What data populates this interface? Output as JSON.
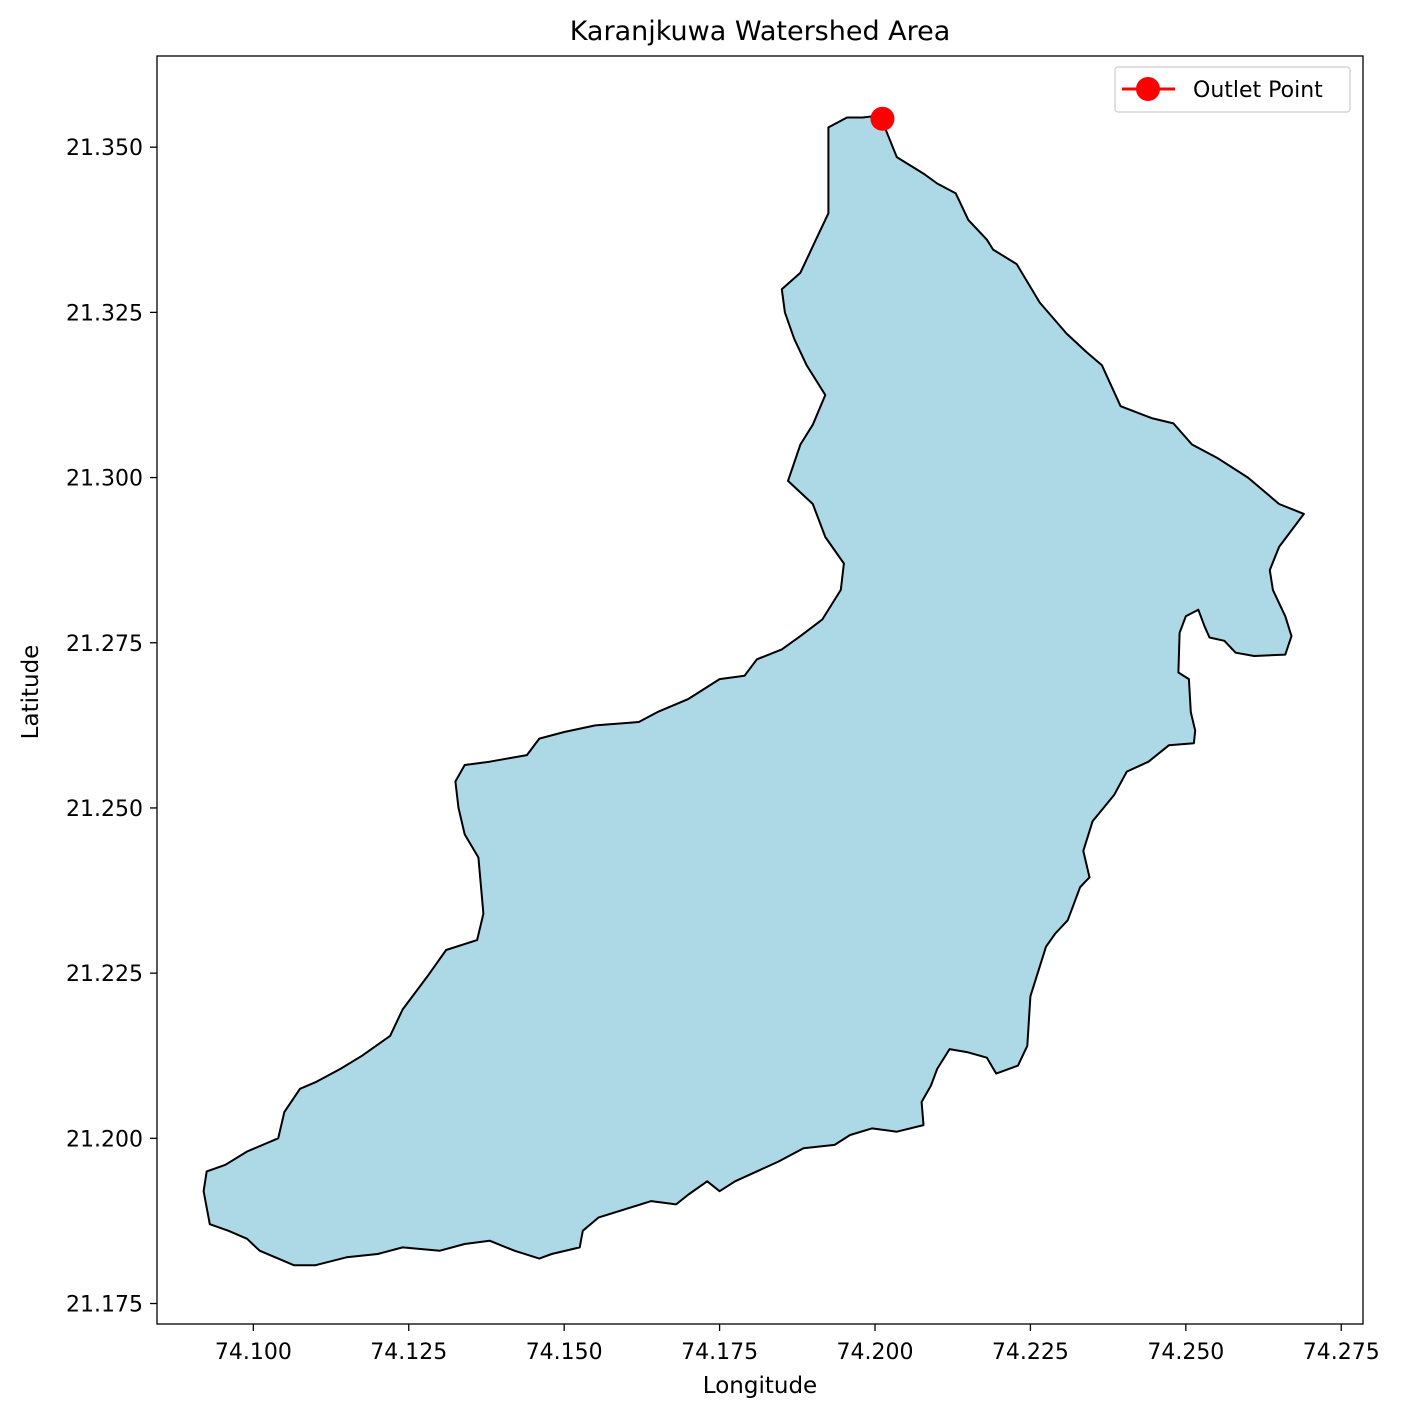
{
  "chart_data": {
    "type": "map",
    "title": "Karanjkuwa Watershed Area",
    "xlabel": "Longitude",
    "ylabel": "Latitude",
    "xlim": [
      74.0845,
      74.2785
    ],
    "ylim": [
      21.1719,
      21.3638
    ],
    "x_ticks": [
      "74.100",
      "74.125",
      "74.150",
      "74.175",
      "74.200",
      "74.225",
      "74.250",
      "74.275"
    ],
    "y_ticks": [
      "21.175",
      "21.200",
      "21.225",
      "21.250",
      "21.275",
      "21.300",
      "21.325",
      "21.350"
    ],
    "outlet_point": {
      "label": "Outlet Point",
      "lon": 74.2012,
      "lat": 21.3543,
      "color": "#ff0000"
    },
    "watershed": {
      "fill": "#add8e6",
      "edge": "#000000",
      "boundary": [
        [
          74.2008,
          21.3548
        ],
        [
          74.2035,
          21.3485
        ],
        [
          74.2078,
          21.346
        ],
        [
          74.21,
          21.3445
        ],
        [
          74.213,
          21.343
        ],
        [
          74.215,
          21.339
        ],
        [
          74.218,
          21.336
        ],
        [
          74.219,
          21.3345
        ],
        [
          74.2228,
          21.3323
        ],
        [
          74.2265,
          21.3265
        ],
        [
          74.2308,
          21.3218
        ],
        [
          74.234,
          21.319
        ],
        [
          74.2365,
          21.317
        ],
        [
          74.2395,
          21.3108
        ],
        [
          74.2445,
          21.309
        ],
        [
          74.248,
          21.3082
        ],
        [
          74.251,
          21.305
        ],
        [
          74.255,
          21.303
        ],
        [
          74.26,
          21.3
        ],
        [
          74.265,
          21.296
        ],
        [
          74.269,
          21.2945
        ],
        [
          74.265,
          21.2895
        ],
        [
          74.2635,
          21.286
        ],
        [
          74.264,
          21.283
        ],
        [
          74.266,
          21.279
        ],
        [
          74.267,
          21.276
        ],
        [
          74.266,
          21.2732
        ],
        [
          74.261,
          21.273
        ],
        [
          74.258,
          21.2735
        ],
        [
          74.2562,
          21.2753
        ],
        [
          74.2538,
          21.2758
        ],
        [
          74.253,
          21.2775
        ],
        [
          74.252,
          21.28
        ],
        [
          74.25,
          21.279
        ],
        [
          74.249,
          21.2765
        ],
        [
          74.2488,
          21.2705
        ],
        [
          74.2505,
          21.2695
        ],
        [
          74.2508,
          21.2645
        ],
        [
          74.2515,
          21.2617
        ],
        [
          74.2513,
          21.2598
        ],
        [
          74.2473,
          21.2595
        ],
        [
          74.244,
          21.257
        ],
        [
          74.2405,
          21.2555
        ],
        [
          74.2385,
          21.252
        ],
        [
          74.235,
          21.248
        ],
        [
          74.2335,
          21.2435
        ],
        [
          74.2345,
          21.2395
        ],
        [
          74.233,
          21.238
        ],
        [
          74.232,
          21.2355
        ],
        [
          74.231,
          21.233
        ],
        [
          74.229,
          21.231
        ],
        [
          74.2275,
          21.229
        ],
        [
          74.225,
          21.2215
        ],
        [
          74.2245,
          21.214
        ],
        [
          74.223,
          21.211
        ],
        [
          74.2195,
          21.2098
        ],
        [
          74.218,
          21.2122
        ],
        [
          74.215,
          21.213
        ],
        [
          74.212,
          21.2135
        ],
        [
          74.21,
          21.2105
        ],
        [
          74.209,
          21.208
        ],
        [
          74.2075,
          21.2055
        ],
        [
          74.2078,
          21.202
        ],
        [
          74.2035,
          21.201
        ],
        [
          74.1995,
          21.2015
        ],
        [
          74.196,
          21.2005
        ],
        [
          74.1935,
          21.199
        ],
        [
          74.1885,
          21.1985
        ],
        [
          74.1845,
          21.1965
        ],
        [
          74.1775,
          21.1935
        ],
        [
          74.175,
          21.192
        ],
        [
          74.173,
          21.1935
        ],
        [
          74.17,
          21.1915
        ],
        [
          74.168,
          21.19
        ],
        [
          74.164,
          21.1905
        ],
        [
          74.1555,
          21.188
        ],
        [
          74.153,
          21.186
        ],
        [
          74.1525,
          21.1835
        ],
        [
          74.148,
          21.1825
        ],
        [
          74.146,
          21.1818
        ],
        [
          74.142,
          21.183
        ],
        [
          74.138,
          21.1845
        ],
        [
          74.134,
          21.184
        ],
        [
          74.13,
          21.183
        ],
        [
          74.124,
          21.1835
        ],
        [
          74.12,
          21.1825
        ],
        [
          74.115,
          21.182
        ],
        [
          74.11,
          21.1808
        ],
        [
          74.1065,
          21.1808
        ],
        [
          74.104,
          21.1818
        ],
        [
          74.101,
          21.183
        ],
        [
          74.099,
          21.1848
        ],
        [
          74.096,
          21.186
        ],
        [
          74.093,
          21.187
        ],
        [
          74.092,
          21.192
        ],
        [
          74.0925,
          21.195
        ],
        [
          74.0955,
          21.196
        ],
        [
          74.099,
          21.198
        ],
        [
          74.104,
          21.2
        ],
        [
          74.105,
          21.204
        ],
        [
          74.1075,
          21.2075
        ],
        [
          74.11,
          21.2085
        ],
        [
          74.114,
          21.2105
        ],
        [
          74.1175,
          21.2125
        ],
        [
          74.122,
          21.2155
        ],
        [
          74.124,
          21.2195
        ],
        [
          74.128,
          21.2245
        ],
        [
          74.131,
          21.2285
        ],
        [
          74.136,
          21.23
        ],
        [
          74.137,
          21.234
        ],
        [
          74.1362,
          21.2425
        ],
        [
          74.134,
          21.246
        ],
        [
          74.133,
          21.25
        ],
        [
          74.1325,
          21.254
        ],
        [
          74.134,
          21.2565
        ],
        [
          74.138,
          21.257
        ],
        [
          74.144,
          21.258
        ],
        [
          74.146,
          21.2605
        ],
        [
          74.15,
          21.2615
        ],
        [
          74.155,
          21.2625
        ],
        [
          74.162,
          21.263
        ],
        [
          74.165,
          21.2645
        ],
        [
          74.17,
          21.2665
        ],
        [
          74.175,
          21.2695
        ],
        [
          74.179,
          21.27
        ],
        [
          74.181,
          21.2725
        ],
        [
          74.185,
          21.274
        ],
        [
          74.188,
          21.276
        ],
        [
          74.1915,
          21.2785
        ],
        [
          74.1945,
          21.283
        ],
        [
          74.195,
          21.287
        ],
        [
          74.192,
          21.291
        ],
        [
          74.19,
          21.296
        ],
        [
          74.186,
          21.2995
        ],
        [
          74.188,
          21.305
        ],
        [
          74.19,
          21.308
        ],
        [
          74.192,
          21.3125
        ],
        [
          74.189,
          21.317
        ],
        [
          74.187,
          21.321
        ],
        [
          74.1855,
          21.325
        ],
        [
          74.185,
          21.3285
        ],
        [
          74.188,
          21.331
        ],
        [
          74.1905,
          21.336
        ],
        [
          74.1925,
          21.34
        ],
        [
          74.1925,
          21.353
        ],
        [
          74.1955,
          21.3545
        ],
        [
          74.198,
          21.3545
        ]
      ]
    }
  }
}
